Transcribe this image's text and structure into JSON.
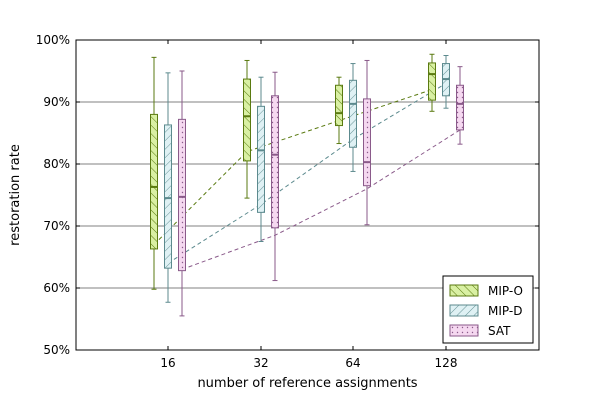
{
  "chart_data": {
    "type": "box",
    "title": "",
    "xlabel": "number of reference assignments",
    "ylabel": "restoration rate",
    "categories": [
      "16",
      "32",
      "64",
      "128"
    ],
    "ylim": [
      50,
      100
    ],
    "yticks": [
      50,
      60,
      70,
      80,
      90,
      100
    ],
    "ytick_labels": [
      "50%",
      "60%",
      "70%",
      "80%",
      "90%",
      "100%"
    ],
    "grid": "horizontal major lines",
    "legend_position": "lower-right",
    "series": [
      {
        "name": "MIP-O",
        "color": "#5a7a10",
        "fill": "#d9f0a3",
        "hatch": "diagonal",
        "boxes": [
          {
            "min": 59.8,
            "q1": 66.3,
            "median": 76.3,
            "q3": 88.0,
            "max": 97.2
          },
          {
            "min": 74.5,
            "q1": 80.5,
            "median": 87.7,
            "q3": 93.7,
            "max": 96.7
          },
          {
            "min": 83.3,
            "q1": 86.2,
            "median": 88.2,
            "q3": 92.7,
            "max": 94.0
          },
          {
            "min": 88.5,
            "q1": 90.3,
            "median": 94.5,
            "q3": 96.3,
            "max": 97.7
          }
        ],
        "mean": [
          67.0,
          82.0,
          87.0,
          92.0
        ]
      },
      {
        "name": "MIP-D",
        "color": "#5c8a8e",
        "fill": "#dff1f4",
        "hatch": "back-diagonal",
        "boxes": [
          {
            "min": 57.7,
            "q1": 63.2,
            "median": 74.5,
            "q3": 86.3,
            "max": 94.7
          },
          {
            "min": 67.5,
            "q1": 72.2,
            "median": 82.2,
            "q3": 89.3,
            "max": 94.0
          },
          {
            "min": 78.8,
            "q1": 82.7,
            "median": 89.7,
            "q3": 93.5,
            "max": 96.2
          },
          {
            "min": 89.0,
            "q1": 91.0,
            "median": 93.7,
            "q3": 96.2,
            "max": 97.5
          }
        ],
        "mean": [
          64.0,
          73.5,
          84.0,
          93.0
        ]
      },
      {
        "name": "SAT",
        "color": "#8a5a8a",
        "fill": "#f5d8f0",
        "hatch": "dots",
        "boxes": [
          {
            "min": 55.5,
            "q1": 62.8,
            "median": 74.7,
            "q3": 87.2,
            "max": 95.0
          },
          {
            "min": 61.2,
            "q1": 69.7,
            "median": 81.5,
            "q3": 91.0,
            "max": 94.8
          },
          {
            "min": 70.2,
            "q1": 76.5,
            "median": 80.3,
            "q3": 90.5,
            "max": 96.7
          },
          {
            "min": 83.2,
            "q1": 85.5,
            "median": 89.7,
            "q3": 92.7,
            "max": 95.7
          }
        ],
        "mean": [
          63.0,
          68.5,
          76.0,
          85.5
        ]
      }
    ]
  }
}
